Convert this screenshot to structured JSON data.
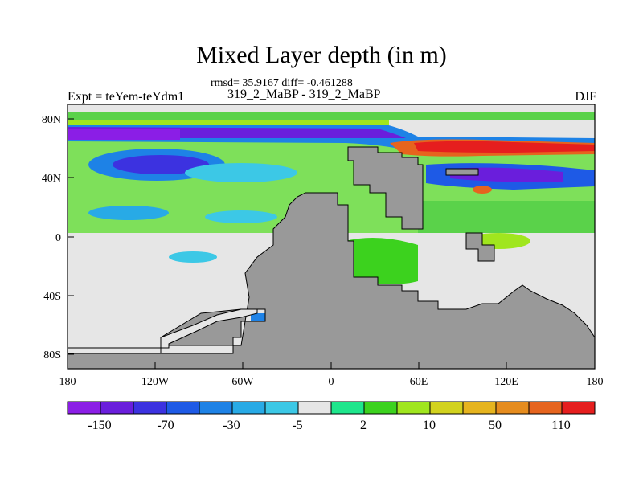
{
  "title": "Mixed Layer depth (in m)",
  "stats_line": "rmsd= 35.9167 diff= -0.461288",
  "subtitle": "319_2_MaBP - 319_2_MaBP",
  "experiment": "Expt = teYem-teYdm1",
  "season": "DJF",
  "axes": {
    "lon_ticks": [
      "180",
      "120W",
      "60W",
      "0",
      "60E",
      "120E",
      "180"
    ],
    "lat_ticks": [
      "80N",
      "40N",
      "0",
      "40S",
      "80S"
    ]
  },
  "colorbar": {
    "labels": [
      "-150",
      "-70",
      "-30",
      "-5",
      "2",
      "10",
      "50",
      "110"
    ],
    "colors": [
      "#8b1ee6",
      "#6a1edc",
      "#3c32e0",
      "#1e5ae6",
      "#1e82e6",
      "#28aae6",
      "#3cc8e6",
      "#e6e6e6",
      "#1ee68c",
      "#3cd21e",
      "#a0e61e",
      "#d2d21e",
      "#e6b41e",
      "#e68c1e",
      "#e6641e",
      "#e61e1e"
    ]
  },
  "map_colors": {
    "land": "#999999",
    "near_zero": "#e6e6e6",
    "deep_negative": "#8b1ee6",
    "deep_positive": "#e61e1e"
  }
}
